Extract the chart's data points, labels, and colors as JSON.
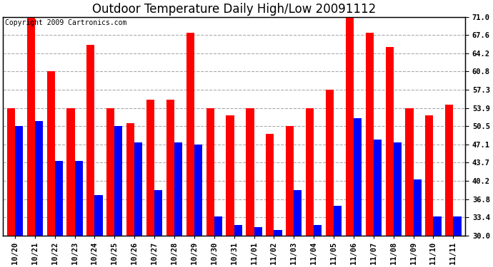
{
  "title": "Outdoor Temperature Daily High/Low 20091112",
  "copyright_text": "Copyright 2009 Cartronics.com",
  "dates": [
    "10/20",
    "10/21",
    "10/22",
    "10/23",
    "10/24",
    "10/25",
    "10/26",
    "10/27",
    "10/28",
    "10/29",
    "10/30",
    "10/31",
    "11/01",
    "11/02",
    "11/03",
    "11/04",
    "11/05",
    "11/06",
    "11/07",
    "11/08",
    "11/09",
    "11/10",
    "11/11"
  ],
  "highs": [
    53.9,
    71.0,
    60.8,
    53.9,
    65.8,
    53.9,
    51.0,
    55.5,
    55.5,
    68.0,
    53.9,
    52.5,
    53.9,
    49.0,
    50.5,
    53.9,
    57.3,
    71.0,
    68.0,
    65.3,
    53.9,
    52.5,
    54.5
  ],
  "lows": [
    50.5,
    51.5,
    44.0,
    44.0,
    37.5,
    50.5,
    47.5,
    38.5,
    47.5,
    47.0,
    33.5,
    32.0,
    31.5,
    31.0,
    38.5,
    32.0,
    35.5,
    52.0,
    48.0,
    47.5,
    40.5,
    33.5,
    33.5
  ],
  "high_color": "#ff0000",
  "low_color": "#0000ff",
  "background_color": "#ffffff",
  "yticks": [
    30.0,
    33.4,
    36.8,
    40.2,
    43.7,
    47.1,
    50.5,
    53.9,
    57.3,
    60.8,
    64.2,
    67.6,
    71.0
  ],
  "ymin": 30.0,
  "ymax": 71.0,
  "grid_color": "#aaaaaa",
  "bar_width": 0.4,
  "title_fontsize": 12,
  "axis_fontsize": 7.5,
  "copyright_fontsize": 7
}
